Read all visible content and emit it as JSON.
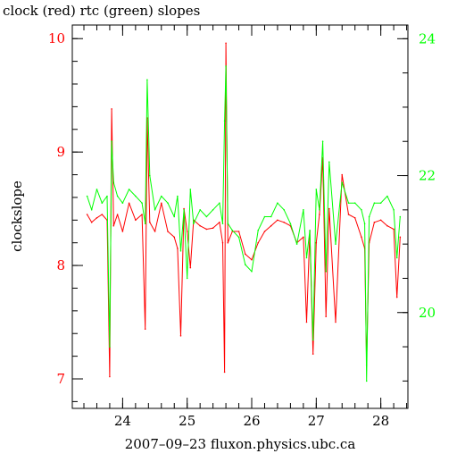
{
  "chart_data": {
    "type": "line",
    "title": "clock (red) rtc (green) slopes",
    "xlabel": "2007–09–23 fluxon.physics.ubc.ca",
    "ylabel": "clockslope",
    "x_ticks": [
      24,
      25,
      26,
      27,
      28
    ],
    "y_left_ticks": [
      7,
      8,
      9,
      10
    ],
    "y_right_ticks": [
      20,
      22,
      24
    ],
    "xlim": [
      23.22,
      28.42
    ],
    "ylim_left": [
      6.74,
      10.12
    ],
    "ylim_right": [
      18.6,
      24.2
    ],
    "colors": {
      "clock": "#ff0000",
      "rtc": "#00ff00",
      "axis": "#000000"
    },
    "series": [
      {
        "axis": "left",
        "color": "#ff0000",
        "x": [
          23.45,
          23.52,
          23.6,
          23.68,
          23.76,
          23.8,
          23.83,
          23.86,
          23.92,
          24.0,
          24.1,
          24.2,
          24.3,
          24.35,
          24.38,
          24.42,
          24.5,
          24.6,
          24.7,
          24.8,
          24.85,
          24.9,
          24.95,
          25.0,
          25.05,
          25.1,
          25.2,
          25.3,
          25.4,
          25.5,
          25.55,
          25.58,
          25.6,
          25.63,
          25.7,
          25.8,
          25.9,
          26.0,
          26.1,
          26.2,
          26.3,
          26.4,
          26.5,
          26.6,
          26.7,
          26.8,
          26.85,
          26.9,
          26.95,
          27.0,
          27.05,
          27.1,
          27.15,
          27.2,
          27.3,
          27.4,
          27.5,
          27.6,
          27.7,
          27.75,
          27.78,
          27.82,
          27.9,
          28.0,
          28.1,
          28.2,
          28.25,
          28.3
        ],
        "y": [
          8.45,
          8.38,
          8.42,
          8.45,
          8.4,
          7.02,
          9.38,
          8.35,
          8.45,
          8.3,
          8.55,
          8.4,
          8.45,
          7.44,
          9.3,
          8.38,
          8.3,
          8.55,
          8.3,
          8.25,
          8.15,
          7.38,
          8.5,
          8.3,
          7.98,
          8.4,
          8.35,
          8.32,
          8.33,
          8.38,
          8.2,
          7.06,
          9.96,
          8.2,
          8.3,
          8.3,
          8.1,
          8.05,
          8.2,
          8.3,
          8.35,
          8.4,
          8.38,
          8.35,
          8.2,
          8.25,
          7.5,
          8.3,
          7.22,
          8.2,
          8.45,
          8.95,
          7.55,
          8.5,
          7.5,
          8.8,
          8.45,
          8.42,
          8.25,
          8.15,
          7.12,
          8.2,
          8.38,
          8.4,
          8.35,
          8.32,
          7.72,
          8.25
        ]
      },
      {
        "axis": "right",
        "color": "#00ff00",
        "x": [
          23.45,
          23.52,
          23.6,
          23.68,
          23.76,
          23.8,
          23.83,
          23.86,
          23.92,
          24.0,
          24.1,
          24.2,
          24.3,
          24.35,
          24.38,
          24.42,
          24.5,
          24.6,
          24.7,
          24.8,
          24.85,
          24.9,
          24.95,
          25.0,
          25.05,
          25.1,
          25.2,
          25.3,
          25.4,
          25.5,
          25.55,
          25.58,
          25.6,
          25.63,
          25.7,
          25.8,
          25.9,
          26.0,
          26.1,
          26.2,
          26.3,
          26.4,
          26.5,
          26.6,
          26.7,
          26.8,
          26.85,
          26.9,
          26.95,
          27.0,
          27.05,
          27.1,
          27.15,
          27.2,
          27.3,
          27.4,
          27.5,
          27.6,
          27.7,
          27.75,
          27.78,
          27.82,
          27.9,
          28.0,
          28.1,
          28.2,
          28.25,
          28.3
        ],
        "y": [
          21.7,
          21.5,
          21.8,
          21.6,
          21.7,
          19.5,
          22.5,
          21.9,
          21.7,
          21.6,
          21.8,
          21.7,
          21.6,
          21.3,
          23.4,
          22.0,
          21.5,
          21.7,
          21.6,
          21.4,
          21.7,
          20.9,
          21.5,
          20.5,
          21.8,
          21.3,
          21.5,
          21.4,
          21.5,
          21.6,
          21.3,
          22.8,
          23.6,
          21.3,
          21.2,
          21.1,
          20.7,
          20.6,
          21.2,
          21.4,
          21.4,
          21.6,
          21.5,
          21.3,
          21.0,
          21.5,
          20.8,
          21.2,
          19.6,
          21.8,
          21.5,
          22.5,
          20.6,
          22.2,
          21.0,
          21.9,
          21.6,
          21.6,
          21.5,
          21.3,
          19.0,
          21.4,
          21.6,
          21.6,
          21.7,
          21.5,
          20.8,
          21.4
        ]
      }
    ]
  }
}
